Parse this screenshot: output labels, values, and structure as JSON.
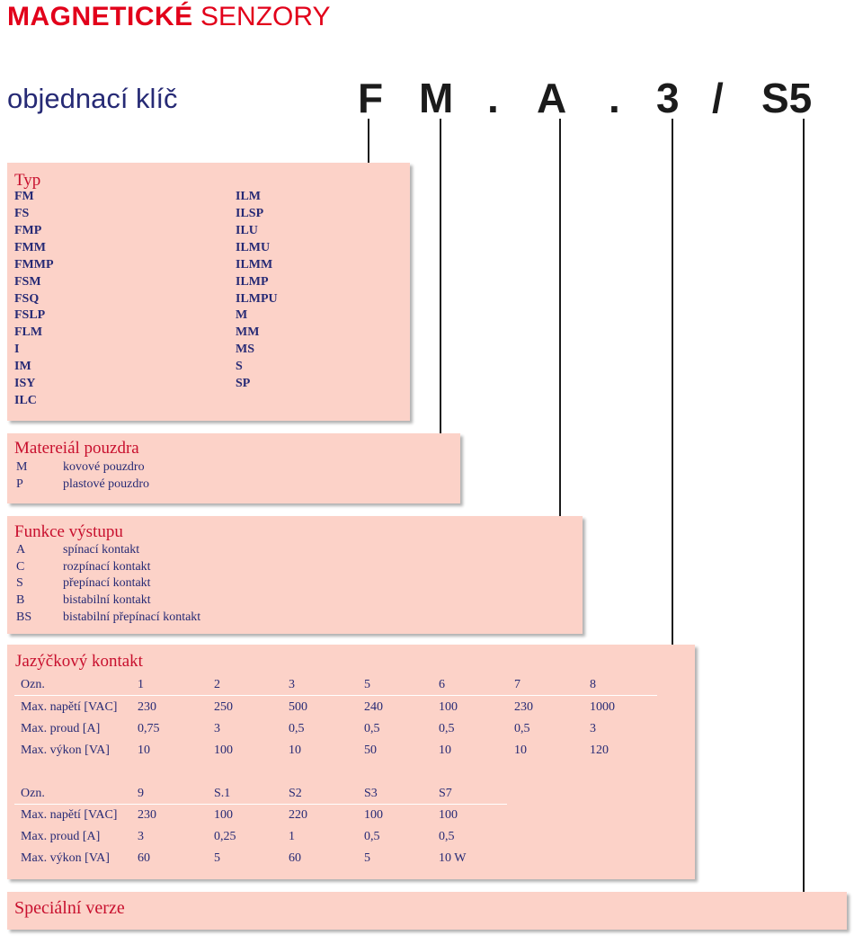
{
  "header": {
    "bold": "MAGNETICKÉ",
    "light": "SENZORY"
  },
  "subtitle": "objednací klíč",
  "order_code": [
    "F",
    "M",
    ".",
    "A",
    ".",
    "3",
    "/",
    "S5"
  ],
  "typ": {
    "title": "Typ",
    "col1": [
      "FM",
      "FS",
      "FMP",
      "FMM",
      "FMMP",
      "FSM",
      "FSQ",
      "FSLP",
      "FLM",
      "I",
      "IM",
      "ISY",
      "ILC"
    ],
    "col2": [
      "ILM",
      "ILSP",
      "ILU",
      "ILMU",
      "ILMM",
      "ILMP",
      "ILMPU",
      "M",
      "MM",
      "MS",
      "S",
      "SP"
    ]
  },
  "material": {
    "title": "Matereiál pouzdra",
    "items": [
      {
        "code": "M",
        "desc": "kovové pouzdro"
      },
      {
        "code": "P",
        "desc": "plastové pouzdro"
      }
    ]
  },
  "funkce": {
    "title": "Funkce výstupu",
    "items": [
      {
        "code": "A",
        "desc": "spínací kontakt"
      },
      {
        "code": "C",
        "desc": "rozpínací kontakt"
      },
      {
        "code": "S",
        "desc": "přepínací kontakt"
      },
      {
        "code": "B",
        "desc": "bistabilní kontakt"
      },
      {
        "code": "BS",
        "desc": "bistabilní přepínací kontakt"
      }
    ]
  },
  "jazyckovy": {
    "title": "Jazýčkový kontakt",
    "table1": [
      [
        "Ozn.",
        "1",
        "2",
        "3",
        "5",
        "6",
        "7",
        "8"
      ],
      [
        "Max. napětí [VAC]",
        "230",
        "250",
        "500",
        "240",
        "100",
        "230",
        "1000"
      ],
      [
        "Max. proud [A]",
        "0,75",
        "3",
        "0,5",
        "0,5",
        "0,5",
        "0,5",
        "3"
      ],
      [
        "Max. výkon [VA]",
        "10",
        "100",
        "10",
        "50",
        "10",
        "10",
        "120"
      ]
    ],
    "table2": [
      [
        "Ozn.",
        "9",
        "S.1",
        "S2",
        "S3",
        "S7"
      ],
      [
        "Max. napětí [VAC]",
        "230",
        "100",
        "220",
        "100",
        "100"
      ],
      [
        "Max. proud [A]",
        "3",
        "0,25",
        "1",
        "0,5",
        "0,5"
      ],
      [
        "Max. výkon [VA]",
        "60",
        "5",
        "60",
        "5",
        "10 W"
      ]
    ]
  },
  "special": {
    "title": "Speciální verze"
  }
}
